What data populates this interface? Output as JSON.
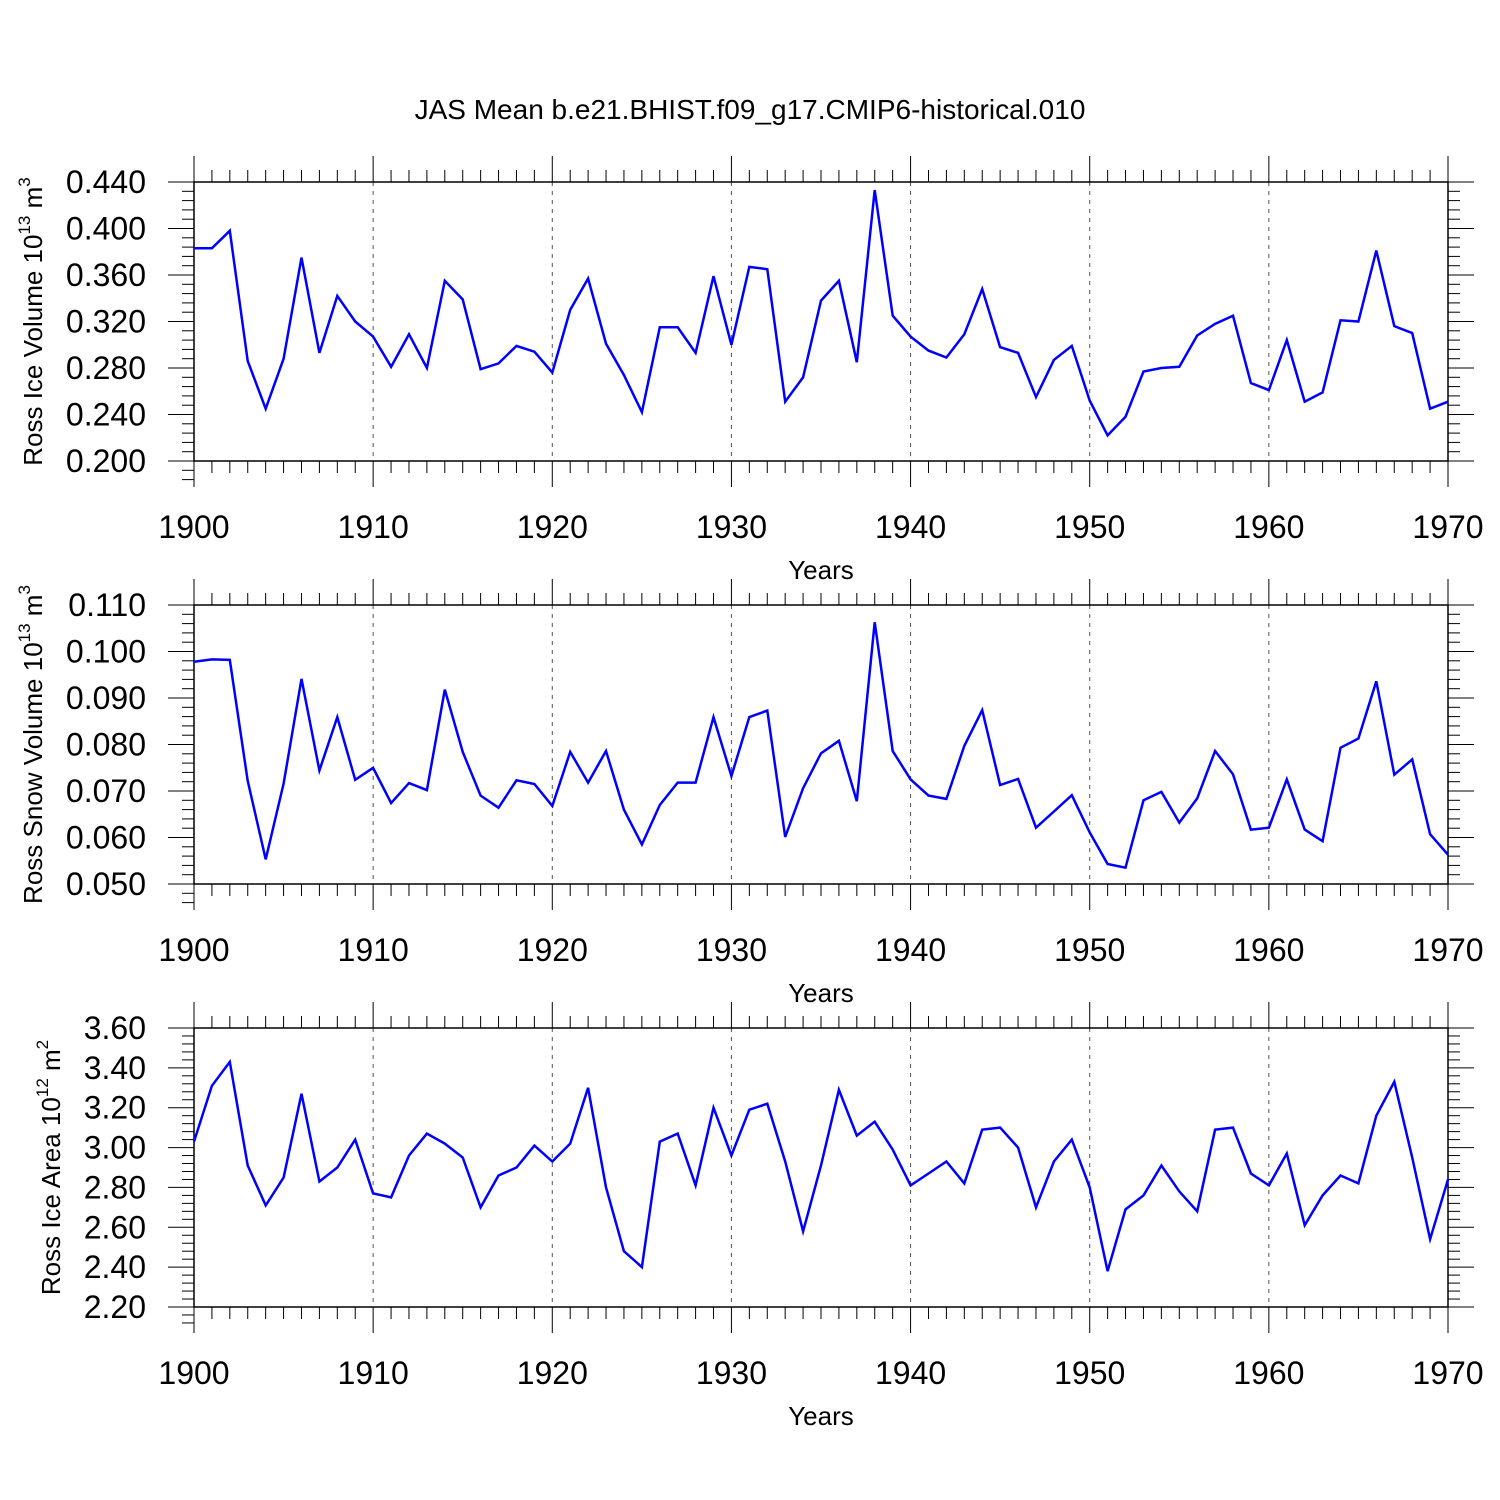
{
  "title": "JAS Mean b.e21.BHIST.f09_g17.CMIP6-historical.010",
  "colors": {
    "line": "#0000ff",
    "axis": "#000000",
    "grid": "#555555"
  },
  "chart_data": [
    {
      "type": "line",
      "ylabel": "Ross Ice Volume 10",
      "ylabel_exp": "13",
      "ylabel_unit": " m",
      "ylabel_unit_exp": "3",
      "xlabel": "Years",
      "xlim": [
        1900,
        1970
      ],
      "ylim": [
        0.2,
        0.44
      ],
      "yticks": [
        0.2,
        0.24,
        0.28,
        0.32,
        0.36,
        0.4,
        0.44
      ],
      "ytick_labels": [
        "0.200",
        "0.240",
        "0.280",
        "0.320",
        "0.360",
        "0.400",
        "0.440"
      ],
      "xticks": [
        1900,
        1910,
        1920,
        1930,
        1940,
        1950,
        1960,
        1970
      ],
      "xtick_labels": [
        "1900",
        "1910",
        "1920",
        "1930",
        "1940",
        "1950",
        "1960",
        "1970"
      ],
      "x_start": 1900,
      "values": [
        0.383,
        0.383,
        0.398,
        0.286,
        0.245,
        0.288,
        0.375,
        0.293,
        0.342,
        0.32,
        0.307,
        0.281,
        0.309,
        0.28,
        0.355,
        0.339,
        0.279,
        0.284,
        0.299,
        0.294,
        0.276,
        0.33,
        0.357,
        0.301,
        0.274,
        0.242,
        0.315,
        0.315,
        0.293,
        0.359,
        0.3,
        0.367,
        0.365,
        0.251,
        0.272,
        0.338,
        0.355,
        0.285,
        0.433,
        0.325,
        0.307,
        0.295,
        0.289,
        0.309,
        0.348,
        0.298,
        0.293,
        0.255,
        0.287,
        0.299,
        0.252,
        0.222,
        0.238,
        0.277,
        0.28,
        0.281,
        0.308,
        0.318,
        0.325,
        0.267,
        0.261,
        0.304,
        0.251,
        0.259,
        0.321,
        0.32,
        0.381,
        0.316,
        0.31,
        0.245,
        0.251
      ]
    },
    {
      "type": "line",
      "ylabel": "Ross Snow Volume 10",
      "ylabel_exp": "13",
      "ylabel_unit": " m",
      "ylabel_unit_exp": "3",
      "xlabel": "Years",
      "xlim": [
        1900,
        1970
      ],
      "ylim": [
        0.05,
        0.11
      ],
      "yticks": [
        0.05,
        0.06,
        0.07,
        0.08,
        0.09,
        0.1,
        0.11
      ],
      "ytick_labels": [
        "0.050",
        "0.060",
        "0.070",
        "0.080",
        "0.090",
        "0.100",
        "0.110"
      ],
      "xticks": [
        1900,
        1910,
        1920,
        1930,
        1940,
        1950,
        1960,
        1970
      ],
      "xtick_labels": [
        "1900",
        "1910",
        "1920",
        "1930",
        "1940",
        "1950",
        "1960",
        "1970"
      ],
      "x_start": 1900,
      "values": [
        0.0978,
        0.0983,
        0.0982,
        0.0722,
        0.0553,
        0.0716,
        0.0941,
        0.0744,
        0.0859,
        0.0724,
        0.075,
        0.0674,
        0.0717,
        0.0702,
        0.0918,
        0.0784,
        0.069,
        0.0664,
        0.0723,
        0.0715,
        0.0668,
        0.0784,
        0.0718,
        0.0786,
        0.066,
        0.0585,
        0.067,
        0.0718,
        0.0718,
        0.0859,
        0.0732,
        0.0859,
        0.0873,
        0.0601,
        0.0706,
        0.0781,
        0.0808,
        0.0678,
        0.1063,
        0.0786,
        0.0725,
        0.069,
        0.0683,
        0.0797,
        0.0874,
        0.0713,
        0.0726,
        0.0621,
        0.0656,
        0.0691,
        0.0611,
        0.0543,
        0.0535,
        0.068,
        0.0698,
        0.0632,
        0.0684,
        0.0786,
        0.0736,
        0.0617,
        0.0621,
        0.0725,
        0.0617,
        0.0592,
        0.0793,
        0.0813,
        0.0936,
        0.0735,
        0.0768,
        0.0607,
        0.0563
      ]
    },
    {
      "type": "line",
      "ylabel": "Ross Ice Area 10",
      "ylabel_exp": "12",
      "ylabel_unit": " m",
      "ylabel_unit_exp": "2",
      "xlabel": "Years",
      "xlim": [
        1900,
        1970
      ],
      "ylim": [
        2.2,
        3.6
      ],
      "yticks": [
        2.2,
        2.4,
        2.6,
        2.8,
        3.0,
        3.2,
        3.4,
        3.6
      ],
      "ytick_labels": [
        "2.20",
        "2.40",
        "2.60",
        "2.80",
        "3.00",
        "3.20",
        "3.40",
        "3.60"
      ],
      "xticks": [
        1900,
        1910,
        1920,
        1930,
        1940,
        1950,
        1960,
        1970
      ],
      "xtick_labels": [
        "1900",
        "1910",
        "1920",
        "1930",
        "1940",
        "1950",
        "1960",
        "1970"
      ],
      "x_start": 1900,
      "values": [
        3.03,
        3.31,
        3.43,
        2.91,
        2.71,
        2.85,
        3.27,
        2.83,
        2.9,
        3.04,
        2.77,
        2.75,
        2.96,
        3.07,
        3.02,
        2.95,
        2.7,
        2.86,
        2.9,
        3.01,
        2.93,
        3.02,
        3.3,
        2.8,
        2.48,
        2.4,
        3.03,
        3.07,
        2.81,
        3.2,
        2.96,
        3.19,
        3.22,
        2.93,
        2.58,
        2.91,
        3.29,
        3.06,
        3.13,
        2.99,
        2.81,
        2.87,
        2.93,
        2.82,
        3.09,
        3.1,
        3.0,
        2.7,
        2.93,
        3.04,
        2.8,
        2.38,
        2.69,
        2.76,
        2.91,
        2.78,
        2.68,
        3.09,
        3.1,
        2.87,
        2.81,
        2.97,
        2.61,
        2.76,
        2.86,
        2.82,
        3.16,
        3.33,
        2.95,
        2.54,
        2.84
      ]
    }
  ]
}
